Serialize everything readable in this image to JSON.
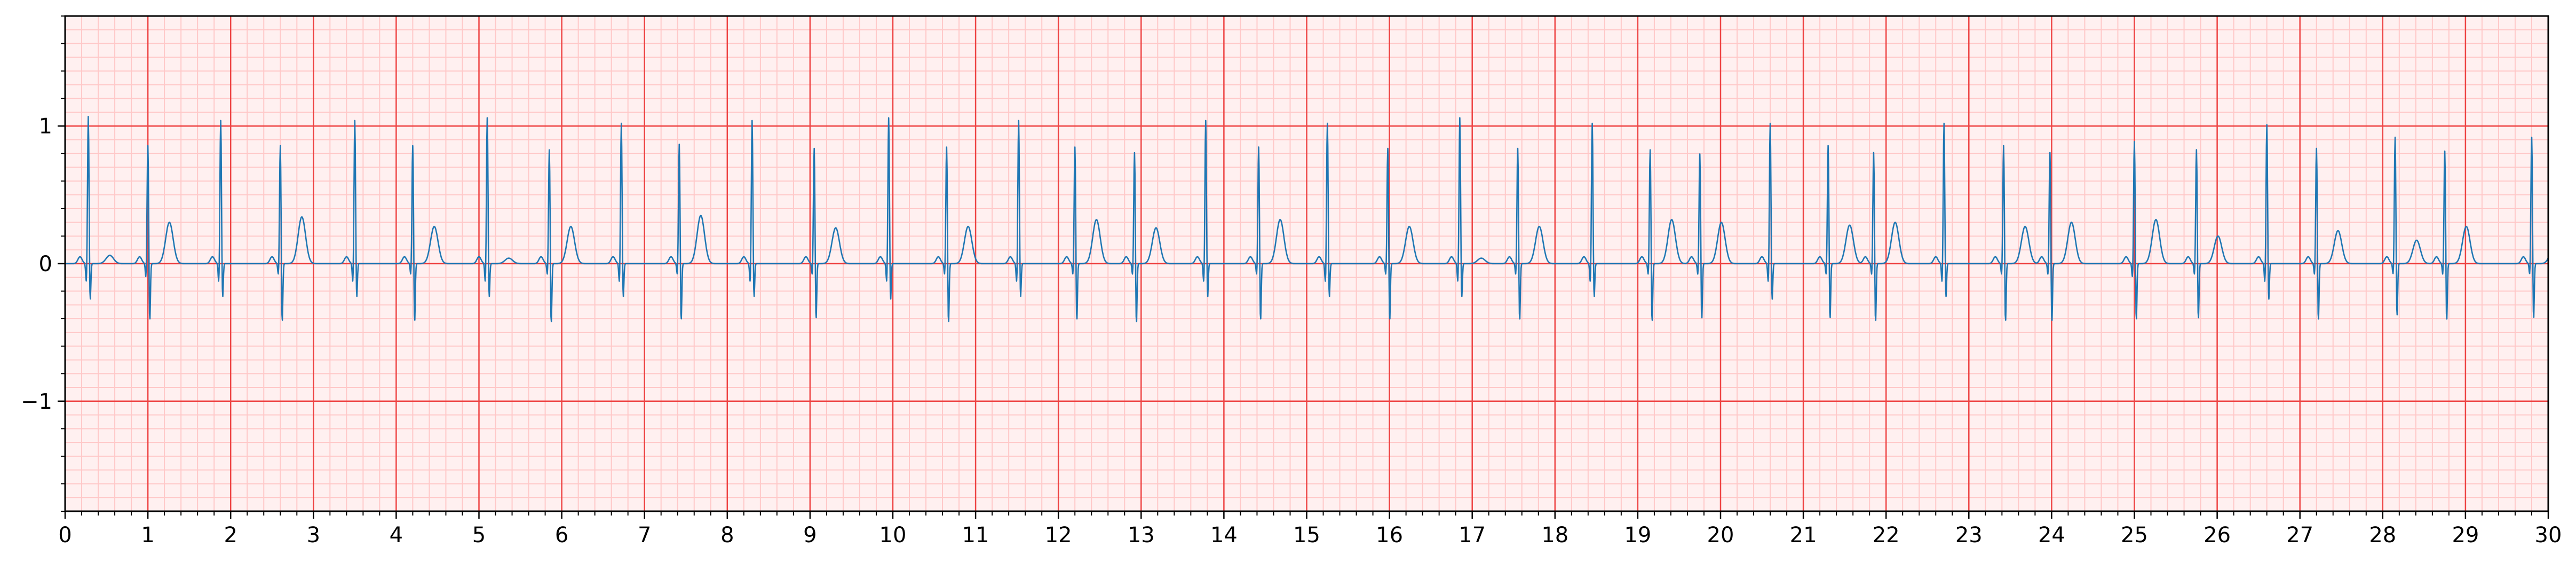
{
  "chart_data": {
    "type": "line",
    "title": "",
    "xlabel": "",
    "ylabel": "",
    "xlim": [
      0,
      30
    ],
    "ylim": [
      -1.8,
      1.8
    ],
    "x_ticks": [
      0,
      1,
      2,
      3,
      4,
      5,
      6,
      7,
      8,
      9,
      10,
      11,
      12,
      13,
      14,
      15,
      16,
      17,
      18,
      19,
      20,
      21,
      22,
      23,
      24,
      25,
      26,
      27,
      28,
      29,
      30
    ],
    "x_tick_labels": [
      "0",
      "1",
      "2",
      "3",
      "4",
      "5",
      "6",
      "7",
      "8",
      "9",
      "10",
      "11",
      "12",
      "13",
      "14",
      "15",
      "16",
      "17",
      "18",
      "19",
      "20",
      "21",
      "22",
      "23",
      "24",
      "25",
      "26",
      "27",
      "28",
      "29",
      "30"
    ],
    "y_ticks": [
      -1,
      0,
      1
    ],
    "y_tick_labels": [
      "−1",
      "0",
      "1"
    ],
    "grid": {
      "major_x_step": 1,
      "minor_x_step": 0.2,
      "major_y_step": 1,
      "minor_y_step": 0.1,
      "major_color": "#ee4444",
      "minor_color": "#ffc8c8",
      "background": "#fff0f0"
    },
    "series": [
      {
        "color": "#1f77b4",
        "beats": [
          {
            "t": 0.28,
            "r": 1.08,
            "s": -0.3,
            "q": -0.16,
            "twave": 0.06
          },
          {
            "t": 1.0,
            "r": 0.87,
            "s": -0.45,
            "q": -0.12,
            "twave": 0.3
          },
          {
            "t": 1.88,
            "r": 1.05,
            "s": -0.28,
            "q": -0.16,
            "twave": 0.0
          },
          {
            "t": 2.6,
            "r": 0.87,
            "s": -0.46,
            "q": -0.1,
            "twave": 0.34
          },
          {
            "t": 3.5,
            "r": 1.05,
            "s": -0.28,
            "q": -0.16,
            "twave": 0.0
          },
          {
            "t": 4.2,
            "r": 0.87,
            "s": -0.46,
            "q": -0.1,
            "twave": 0.27
          },
          {
            "t": 5.1,
            "r": 1.07,
            "s": -0.28,
            "q": -0.16,
            "twave": 0.04
          },
          {
            "t": 5.85,
            "r": 0.84,
            "s": -0.47,
            "q": -0.1,
            "twave": 0.27
          },
          {
            "t": 6.72,
            "r": 1.03,
            "s": -0.28,
            "q": -0.16,
            "twave": 0.0
          },
          {
            "t": 7.42,
            "r": 0.88,
            "s": -0.45,
            "q": -0.1,
            "twave": 0.35
          },
          {
            "t": 8.3,
            "r": 1.05,
            "s": -0.28,
            "q": -0.16,
            "twave": 0.0
          },
          {
            "t": 9.05,
            "r": 0.85,
            "s": -0.44,
            "q": -0.1,
            "twave": 0.26
          },
          {
            "t": 9.95,
            "r": 1.07,
            "s": -0.3,
            "q": -0.16,
            "twave": 0.0
          },
          {
            "t": 10.65,
            "r": 0.86,
            "s": -0.47,
            "q": -0.1,
            "twave": 0.27
          },
          {
            "t": 11.52,
            "r": 1.05,
            "s": -0.28,
            "q": -0.16,
            "twave": 0.0
          },
          {
            "t": 12.2,
            "r": 0.86,
            "s": -0.45,
            "q": -0.1,
            "twave": 0.32
          },
          {
            "t": 12.92,
            "r": 0.82,
            "s": -0.47,
            "q": -0.1,
            "twave": 0.26
          },
          {
            "t": 13.78,
            "r": 1.05,
            "s": -0.28,
            "q": -0.16,
            "twave": 0.0
          },
          {
            "t": 14.42,
            "r": 0.86,
            "s": -0.45,
            "q": -0.1,
            "twave": 0.32
          },
          {
            "t": 15.25,
            "r": 1.03,
            "s": -0.28,
            "q": -0.16,
            "twave": 0.0
          },
          {
            "t": 15.98,
            "r": 0.85,
            "s": -0.45,
            "q": -0.1,
            "twave": 0.27
          },
          {
            "t": 16.85,
            "r": 1.07,
            "s": -0.28,
            "q": -0.16,
            "twave": 0.04
          },
          {
            "t": 17.55,
            "r": 0.85,
            "s": -0.45,
            "q": -0.1,
            "twave": 0.27
          },
          {
            "t": 18.45,
            "r": 1.03,
            "s": -0.28,
            "q": -0.16,
            "twave": 0.0
          },
          {
            "t": 19.15,
            "r": 0.84,
            "s": -0.46,
            "q": -0.1,
            "twave": 0.32
          },
          {
            "t": 19.75,
            "r": 0.81,
            "s": -0.44,
            "q": -0.1,
            "twave": 0.3
          },
          {
            "t": 20.6,
            "r": 1.03,
            "s": -0.3,
            "q": -0.16,
            "twave": 0.0
          },
          {
            "t": 21.3,
            "r": 0.87,
            "s": -0.44,
            "q": -0.1,
            "twave": 0.28
          },
          {
            "t": 21.85,
            "r": 0.82,
            "s": -0.46,
            "q": -0.1,
            "twave": 0.3
          },
          {
            "t": 22.7,
            "r": 1.03,
            "s": -0.28,
            "q": -0.16,
            "twave": 0.0
          },
          {
            "t": 23.42,
            "r": 0.87,
            "s": -0.46,
            "q": -0.1,
            "twave": 0.27
          },
          {
            "t": 23.98,
            "r": 0.82,
            "s": -0.46,
            "q": -0.1,
            "twave": 0.3
          },
          {
            "t": 25.0,
            "r": 0.9,
            "s": -0.45,
            "q": -0.12,
            "twave": 0.32
          },
          {
            "t": 25.75,
            "r": 0.84,
            "s": -0.44,
            "q": -0.1,
            "twave": 0.2
          },
          {
            "t": 26.6,
            "r": 1.02,
            "s": -0.3,
            "q": -0.16,
            "twave": 0.0
          },
          {
            "t": 27.2,
            "r": 0.85,
            "s": -0.45,
            "q": -0.1,
            "twave": 0.24
          },
          {
            "t": 28.15,
            "r": 0.93,
            "s": -0.42,
            "q": -0.1,
            "twave": 0.17
          },
          {
            "t": 28.75,
            "r": 0.83,
            "s": -0.45,
            "q": -0.1,
            "twave": 0.27
          },
          {
            "t": 29.8,
            "r": 0.93,
            "s": -0.44,
            "q": -0.1,
            "twave": 0.1
          }
        ]
      }
    ]
  }
}
